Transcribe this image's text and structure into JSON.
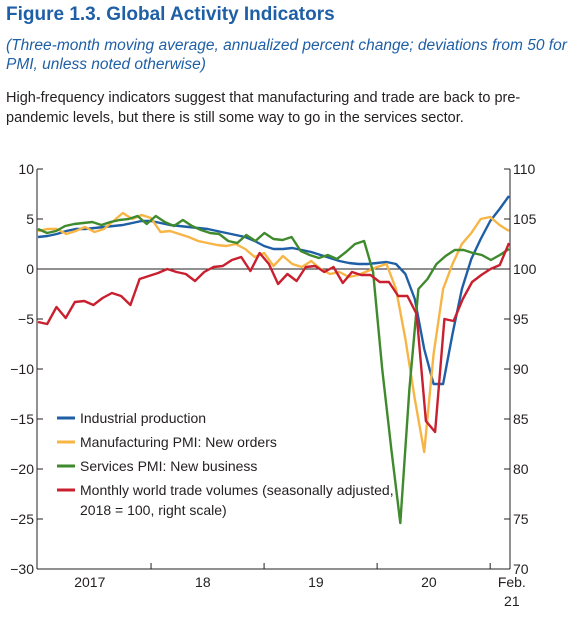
{
  "figure": {
    "title": "Figure 1.3.  Global Activity Indicators",
    "subtitle": "(Three-month moving average, annualized percent change; deviations from 50 for PMI, unless noted otherwise)",
    "caption": "High-frequency indicators suggest that manufacturing and trade are back to pre-pandemic levels, but there is still some way to go in the services sector."
  },
  "chart_data": {
    "type": "line",
    "x_tick_labels": [
      "2017",
      "18",
      "19",
      "20",
      "Feb.",
      "21"
    ],
    "left_axis": {
      "ylim": [
        -30,
        10
      ],
      "ticks": [
        "10",
        "5",
        "0",
        "−5",
        "−10",
        "−15",
        "−20",
        "−25",
        "−30"
      ]
    },
    "right_axis": {
      "ylim": [
        70,
        110
      ],
      "ticks": [
        "110",
        "105",
        "100",
        "95",
        "90",
        "85",
        "80",
        "75",
        "70"
      ]
    },
    "x_range": [
      "2017-01",
      "2021-02"
    ],
    "grid": false,
    "zero_line": true,
    "legend_position": "lower-left",
    "series": [
      {
        "name": "Industrial production",
        "axis": "left",
        "color": "#1f5fa6",
        "values": [
          3.2,
          3.3,
          3.5,
          3.8,
          4.0,
          4.0,
          4.1,
          4.2,
          4.3,
          4.4,
          4.6,
          4.8,
          4.8,
          4.6,
          4.4,
          4.3,
          4.2,
          4.1,
          4.0,
          3.8,
          3.6,
          3.4,
          3.2,
          2.8,
          2.3,
          2.0,
          2.0,
          2.1,
          1.9,
          1.7,
          1.4,
          1.1,
          0.8,
          0.6,
          0.5,
          0.5,
          0.6,
          0.7,
          0.5,
          -0.5,
          -3.0,
          -8.0,
          -11.5,
          -11.5,
          -6.5,
          -2.0,
          1.0,
          3.0,
          4.8,
          6.0,
          7.3
        ]
      },
      {
        "name": "Manufacturing PMI: New orders",
        "axis": "left",
        "color": "#f7b546",
        "values": [
          3.8,
          4.0,
          4.0,
          3.5,
          3.8,
          4.2,
          3.7,
          4.0,
          4.8,
          5.6,
          5.0,
          5.4,
          5.1,
          3.7,
          3.8,
          3.5,
          3.2,
          2.8,
          2.6,
          2.4,
          2.3,
          2.5,
          2.0,
          1.2,
          1.6,
          0.3,
          1.3,
          0.5,
          0.2,
          0.8,
          0.0,
          -0.5,
          -0.3,
          -0.8,
          -0.6,
          -0.2,
          0.2,
          0.5,
          -2.0,
          -7.0,
          -13.0,
          -18.3,
          -8.5,
          -2.0,
          0.5,
          2.5,
          3.6,
          5.0,
          5.2,
          4.4,
          3.8
        ]
      },
      {
        "name": "Services PMI: New business",
        "axis": "left",
        "color": "#3f8a2c",
        "values": [
          4.0,
          3.6,
          3.8,
          4.3,
          4.5,
          4.6,
          4.7,
          4.4,
          4.7,
          4.9,
          5.0,
          5.3,
          4.5,
          5.3,
          4.7,
          4.3,
          4.9,
          4.3,
          3.9,
          3.6,
          3.5,
          2.8,
          2.6,
          3.4,
          2.8,
          3.6,
          3.0,
          2.9,
          3.2,
          1.8,
          1.4,
          1.1,
          1.4,
          1.0,
          1.7,
          2.5,
          2.8,
          -0.3,
          -10.0,
          -18.0,
          -25.4,
          -12.0,
          -2.0,
          -1.0,
          0.5,
          1.3,
          1.9,
          1.9,
          1.6,
          1.4,
          0.9,
          1.4,
          2.0
        ]
      },
      {
        "name": "Monthly world trade volumes (seasonally adjusted, 2018 = 100, right scale)",
        "axis": "right",
        "color": "#c8202e",
        "values": [
          94.7,
          94.5,
          96.2,
          95.1,
          96.7,
          96.8,
          96.4,
          97.1,
          97.6,
          97.3,
          96.4,
          99.0,
          99.3,
          99.6,
          100.0,
          99.7,
          99.5,
          98.8,
          99.7,
          100.2,
          100.3,
          100.9,
          101.2,
          99.8,
          101.6,
          100.5,
          98.5,
          99.5,
          98.8,
          100.2,
          100.3,
          99.7,
          100.2,
          98.6,
          99.7,
          99.4,
          99.4,
          98.7,
          98.7,
          97.3,
          97.3,
          95.5,
          84.8,
          83.7,
          95.0,
          94.8,
          97.0,
          98.7,
          99.4,
          100.0,
          100.4,
          102.6
        ]
      }
    ]
  }
}
